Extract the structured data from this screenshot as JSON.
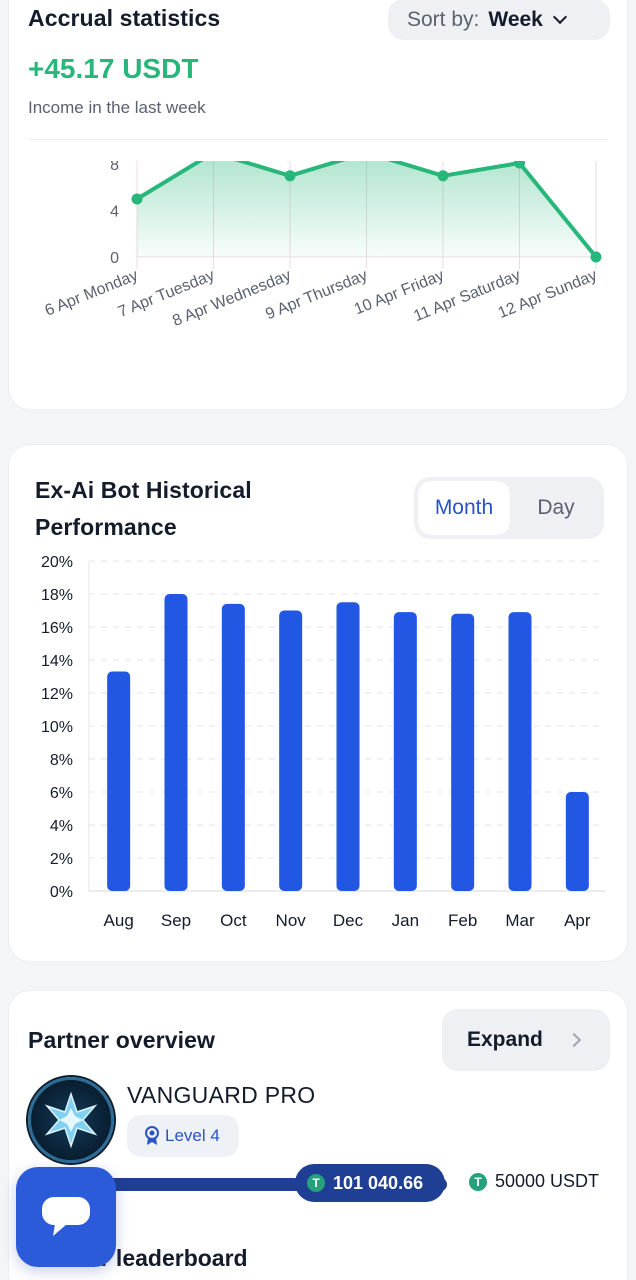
{
  "accrual": {
    "title": "Accrual statistics",
    "sort_label": "Sort by:",
    "sort_value": "Week",
    "income": "+45.17 USDT",
    "income_caption": "Income in the last week"
  },
  "bot": {
    "title_line1": "Ex-Ai Bot Historical",
    "title_line2": "Performance",
    "toggle_month": "Month",
    "toggle_day": "Day"
  },
  "partner": {
    "title": "Partner overview",
    "expand_label": "Expand",
    "name": "VANGUARD PRO",
    "level": "Level 4",
    "current": "101 040.66",
    "target": "50000 USDT",
    "tether_glyph": "T",
    "leaderboard_title": "Partner leaderboard"
  },
  "chart_data": [
    {
      "type": "area",
      "categories": [
        "6 Apr Monday",
        "7 Apr Tuesday",
        "8 Apr Wednesday",
        "9 Apr Thursday",
        "10 Apr Friday",
        "11 Apr Saturday",
        "12 Apr Sunday"
      ],
      "values": [
        5,
        9,
        7,
        9,
        7,
        8.1,
        0
      ],
      "ylim": [
        0,
        10
      ],
      "yticks": [
        "0",
        "4",
        "8"
      ],
      "ytick_values": [
        0,
        4,
        8
      ],
      "color": "#27b77a",
      "grid": "vertical"
    },
    {
      "type": "bar",
      "categories": [
        "Aug",
        "Sep",
        "Oct",
        "Nov",
        "Dec",
        "Jan",
        "Feb",
        "Mar",
        "Apr"
      ],
      "values": [
        13.3,
        18,
        17.4,
        17,
        17.5,
        16.9,
        16.8,
        16.9,
        6
      ],
      "ylim": [
        0,
        20
      ],
      "yticks": [
        "0%",
        "2%",
        "4%",
        "6%",
        "8%",
        "10%",
        "12%",
        "14%",
        "16%",
        "18%",
        "20%"
      ],
      "color": "#2157e3",
      "grid": "horizontal-dashed"
    }
  ]
}
